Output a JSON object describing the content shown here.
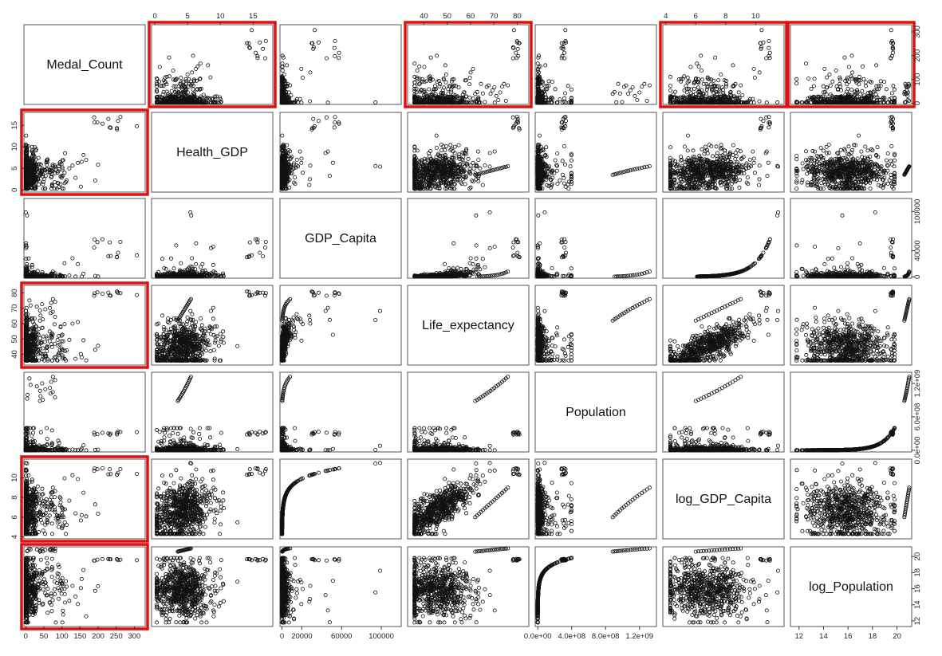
{
  "chart_data": {
    "type": "scatter",
    "variables": [
      {
        "name": "Medal_Count",
        "min": -5,
        "max": 330,
        "ticks": [
          0,
          100,
          200,
          300
        ],
        "tick_labels_bottom": [
          "0",
          "50",
          "100",
          "150",
          "200",
          "250",
          "300"
        ],
        "ticks_bottom": [
          0,
          50,
          100,
          150,
          200,
          250,
          300
        ]
      },
      {
        "name": "Health_GDP",
        "min": -0.5,
        "max": 18,
        "ticks": [
          0,
          5,
          10,
          15
        ]
      },
      {
        "name": "GDP_Capita",
        "min": -2000,
        "max": 120000,
        "ticks": [
          0,
          40000,
          100000
        ],
        "ticks_bottom": [
          0,
          20000,
          60000,
          100000
        ]
      },
      {
        "name": "Life_expectancy",
        "min": 33,
        "max": 85,
        "ticks": [
          40,
          50,
          60,
          70,
          80
        ]
      },
      {
        "name": "Population",
        "min": -30000000.0,
        "max": 1400000000.0,
        "ticks": [
          0,
          600000000.0,
          1200000000.0
        ],
        "tick_labels": [
          "0.0e+00",
          "6.0e+08",
          "1.2e+09"
        ],
        "ticks_bottom": [
          0,
          400000000.0,
          800000000.0,
          1200000000.0
        ],
        "tick_labels_bottom": [
          "0.0e+00",
          "4.0e+08",
          "8.0e+08",
          "1.2e+09"
        ]
      },
      {
        "name": "log_GDP_Capita",
        "min": 3.8,
        "max": 11.9,
        "ticks": [
          4,
          6,
          8,
          10
        ]
      },
      {
        "name": "log_Population",
        "min": 11.3,
        "max": 21.2,
        "ticks": [
          12,
          14,
          16,
          18,
          20
        ]
      }
    ],
    "highlighted_panels": [
      [
        0,
        1
      ],
      [
        0,
        3
      ],
      [
        0,
        5
      ],
      [
        0,
        6
      ],
      [
        1,
        0
      ],
      [
        3,
        0
      ],
      [
        5,
        0
      ],
      [
        6,
        0
      ]
    ],
    "highlight_color": "#dd1111",
    "point_style": "open-circle",
    "grid": false,
    "legend": "none"
  }
}
